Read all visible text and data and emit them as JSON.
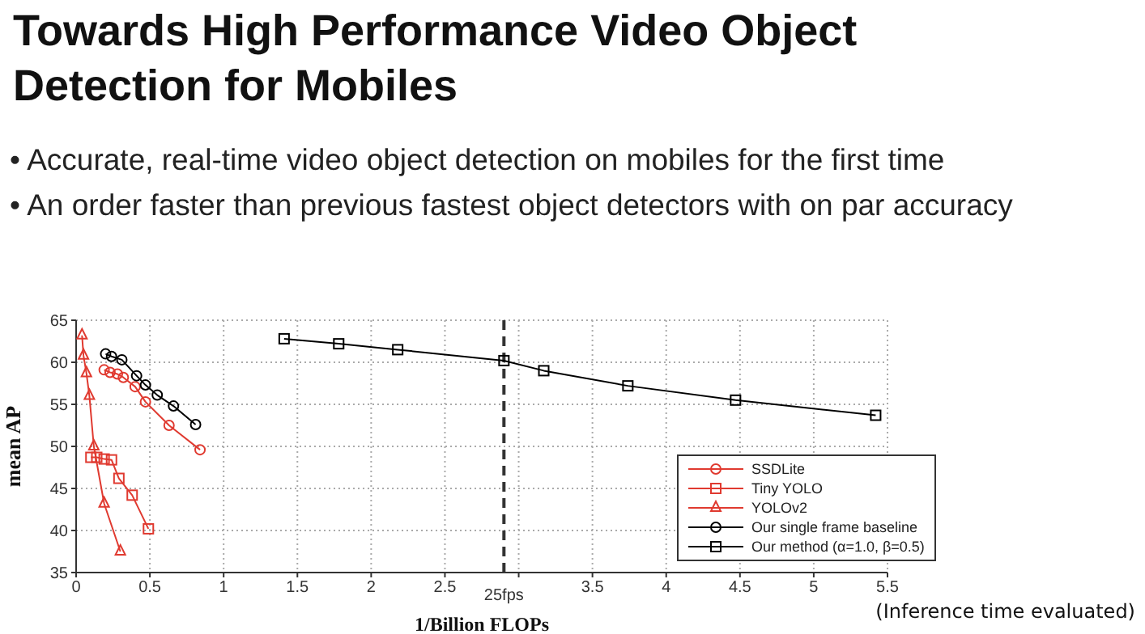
{
  "chart_data": {
    "type": "line",
    "title": "Towards High Performance Video Object Detection for Mobiles",
    "annotations": [
      "• Accurate, real-time video object detection on mobiles for the first time",
      "• An order faster than previous fastest object detectors with on par accuracy",
      "(Inference time evaluated)"
    ],
    "xlabel": "1/Billion FLOPs",
    "ylabel": "mean AP",
    "xlim": [
      0,
      5.5
    ],
    "xticks": [
      0,
      0.5,
      1,
      1.5,
      2,
      2.5,
      {
        "value": 3,
        "label": null
      },
      3.5,
      4,
      4.5,
      5,
      5.5
    ],
    "ylim": [
      35,
      65
    ],
    "yticks": [
      35,
      40,
      45,
      50,
      55,
      60,
      65
    ],
    "grid": true,
    "legend": "bottom right",
    "line_style": "solid",
    "ref_lines": [
      {
        "axis": "x",
        "value": 2.9,
        "label": "25fps",
        "color": "#333333",
        "line_style": "dashed"
      }
    ],
    "series": [
      {
        "name": "SSDLite",
        "color": "#e03a30",
        "marker": "circle",
        "x": [
          0.19,
          0.23,
          0.28,
          0.32,
          0.4,
          0.47,
          0.63,
          0.84
        ],
        "values": [
          59.1,
          58.8,
          58.6,
          58.2,
          57.1,
          55.3,
          52.5,
          49.6
        ]
      },
      {
        "name": "Tiny YOLO",
        "color": "#e03a30",
        "marker": "square",
        "x": [
          0.1,
          0.14,
          0.19,
          0.24,
          0.29,
          0.38,
          0.49
        ],
        "values": [
          48.7,
          48.7,
          48.5,
          48.4,
          46.2,
          44.2,
          40.2
        ]
      },
      {
        "name": "YOLOv2",
        "color": "#e03a30",
        "marker": "triangle",
        "x": [
          0.04,
          0.05,
          0.07,
          0.09,
          0.12,
          0.19,
          0.3
        ],
        "values": [
          63.2,
          60.8,
          58.7,
          56.0,
          50.0,
          43.2,
          37.5
        ]
      },
      {
        "name": "Our single frame baseline",
        "color": "#000000",
        "marker": "circle",
        "x": [
          0.2,
          0.24,
          0.31,
          0.41,
          0.47,
          0.55,
          0.66,
          0.81
        ],
        "values": [
          61.0,
          60.7,
          60.3,
          58.4,
          57.3,
          56.1,
          54.8,
          52.6
        ]
      },
      {
        "name": "Our method (α=1.0, β=0.5)",
        "color": "#000000",
        "marker": "square",
        "x": [
          1.41,
          1.78,
          2.18,
          2.9,
          3.17,
          3.74,
          4.47,
          5.42
        ],
        "values": [
          62.8,
          62.2,
          61.5,
          60.2,
          59.0,
          57.2,
          55.5,
          53.7
        ]
      }
    ]
  }
}
